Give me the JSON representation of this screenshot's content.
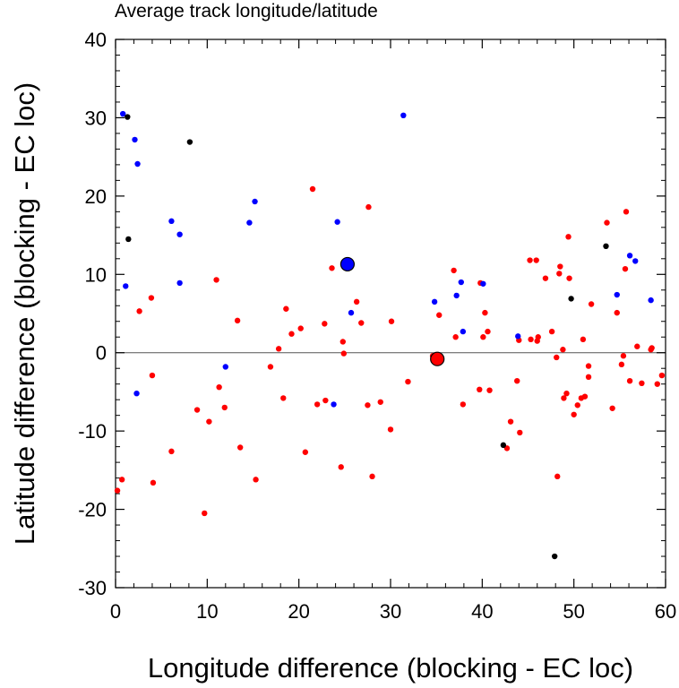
{
  "chart_data": {
    "type": "scatter",
    "title": "Average track longitude/latitude",
    "xlabel": "Longitude difference (blocking - EC loc)",
    "ylabel": "Latitude difference (blocking - EC loc)",
    "xlim": [
      0,
      60
    ],
    "ylim": [
      -30,
      40
    ],
    "xticks": [
      0,
      10,
      20,
      30,
      40,
      50,
      60
    ],
    "yticks": [
      -30,
      -20,
      -10,
      0,
      10,
      20,
      30,
      40
    ],
    "x_tick_labels": [
      "0",
      "10",
      "20",
      "30",
      "40",
      "50",
      "60"
    ],
    "y_tick_labels": [
      "-30",
      "-20",
      "-10",
      "0",
      "10",
      "20",
      "30",
      "40"
    ],
    "zero_line": true,
    "grid": false,
    "series": [
      {
        "color": "#ff0000",
        "marker": "small-dot",
        "points": [
          [
            0.2,
            -17.6
          ],
          [
            0.7,
            -16.2
          ],
          [
            2.6,
            5.3
          ],
          [
            3.9,
            7.0
          ],
          [
            4.0,
            -2.9
          ],
          [
            4.1,
            -16.6
          ],
          [
            6.1,
            -12.6
          ],
          [
            8.9,
            -7.3
          ],
          [
            9.7,
            -20.5
          ],
          [
            10.2,
            -8.8
          ],
          [
            11.0,
            9.3
          ],
          [
            11.3,
            -4.4
          ],
          [
            11.9,
            -7.0
          ],
          [
            13.3,
            4.1
          ],
          [
            13.6,
            -12.1
          ],
          [
            15.3,
            -16.2
          ],
          [
            16.9,
            -1.8
          ],
          [
            17.8,
            0.5
          ],
          [
            18.3,
            -5.8
          ],
          [
            18.6,
            5.6
          ],
          [
            19.2,
            2.4
          ],
          [
            20.2,
            3.1
          ],
          [
            20.7,
            -12.7
          ],
          [
            21.5,
            20.9
          ],
          [
            22.0,
            -6.6
          ],
          [
            22.8,
            3.7
          ],
          [
            22.9,
            -6.1
          ],
          [
            23.6,
            10.8
          ],
          [
            24.6,
            -14.6
          ],
          [
            24.8,
            1.4
          ],
          [
            24.9,
            -0.1
          ],
          [
            26.3,
            6.5
          ],
          [
            26.8,
            3.8
          ],
          [
            27.5,
            -6.7
          ],
          [
            27.6,
            18.6
          ],
          [
            28.0,
            -15.8
          ],
          [
            28.9,
            -6.3
          ],
          [
            30.1,
            4.0
          ],
          [
            30.0,
            -9.8
          ],
          [
            31.9,
            -3.7
          ],
          [
            34.6,
            -0.4
          ],
          [
            35.3,
            4.8
          ],
          [
            36.9,
            10.5
          ],
          [
            37.1,
            2.0
          ],
          [
            37.9,
            -6.6
          ],
          [
            39.7,
            -4.7
          ],
          [
            39.8,
            8.9
          ],
          [
            40.1,
            2.0
          ],
          [
            40.3,
            5.1
          ],
          [
            40.6,
            2.7
          ],
          [
            40.8,
            -4.8
          ],
          [
            42.7,
            -12.2
          ],
          [
            43.1,
            -8.8
          ],
          [
            43.8,
            -3.6
          ],
          [
            44.1,
            -10.2
          ],
          [
            45.2,
            11.8
          ],
          [
            45.3,
            1.7
          ],
          [
            45.9,
            11.8
          ],
          [
            46.1,
            2.0
          ],
          [
            46.0,
            1.5
          ],
          [
            46.9,
            9.5
          ],
          [
            47.6,
            2.7
          ],
          [
            48.1,
            -0.6
          ],
          [
            48.2,
            -15.8
          ],
          [
            48.5,
            11.0
          ],
          [
            48.4,
            10.1
          ],
          [
            48.8,
            0.4
          ],
          [
            48.9,
            -5.8
          ],
          [
            49.2,
            -5.2
          ],
          [
            49.4,
            14.8
          ],
          [
            49.5,
            9.5
          ],
          [
            50.0,
            -7.9
          ],
          [
            50.4,
            -6.7
          ],
          [
            50.8,
            -5.8
          ],
          [
            51.2,
            -5.6
          ],
          [
            51.6,
            -1.7
          ],
          [
            51.6,
            -3.1
          ],
          [
            51.9,
            6.2
          ],
          [
            53.6,
            16.6
          ],
          [
            54.2,
            -7.1
          ],
          [
            54.7,
            5.1
          ],
          [
            55.2,
            -1.5
          ],
          [
            55.4,
            -0.4
          ],
          [
            55.6,
            10.7
          ],
          [
            55.7,
            18.0
          ],
          [
            56.1,
            -3.6
          ],
          [
            56.9,
            0.8
          ],
          [
            57.4,
            -3.9
          ],
          [
            58.4,
            0.4
          ],
          [
            58.5,
            0.6
          ],
          [
            59.1,
            -4.0
          ],
          [
            59.6,
            -2.9
          ],
          [
            51.0,
            1.7
          ],
          [
            44.0,
            1.6
          ]
        ]
      },
      {
        "color": "#0000ff",
        "marker": "small-dot",
        "points": [
          [
            0.8,
            30.5
          ],
          [
            1.1,
            8.5
          ],
          [
            2.1,
            27.2
          ],
          [
            2.4,
            24.1
          ],
          [
            2.3,
            -5.2
          ],
          [
            6.1,
            16.8
          ],
          [
            7.0,
            15.1
          ],
          [
            7.0,
            8.9
          ],
          [
            12.0,
            -1.8
          ],
          [
            14.6,
            16.6
          ],
          [
            15.2,
            19.3
          ],
          [
            23.8,
            -6.6
          ],
          [
            24.2,
            16.7
          ],
          [
            25.7,
            5.1
          ],
          [
            31.4,
            30.3
          ],
          [
            34.8,
            6.5
          ],
          [
            37.2,
            7.3
          ],
          [
            37.7,
            9.0
          ],
          [
            37.9,
            2.7
          ],
          [
            40.1,
            8.8
          ],
          [
            43.9,
            2.1
          ],
          [
            54.7,
            7.4
          ],
          [
            56.1,
            12.4
          ],
          [
            56.7,
            11.7
          ],
          [
            58.4,
            6.7
          ]
        ]
      },
      {
        "color": "#000000",
        "marker": "small-dot",
        "points": [
          [
            1.3,
            30.1
          ],
          [
            8.1,
            26.9
          ],
          [
            1.4,
            14.5
          ],
          [
            42.3,
            -11.8
          ],
          [
            47.9,
            -26.0
          ],
          [
            49.7,
            6.9
          ],
          [
            53.5,
            13.6
          ]
        ]
      },
      {
        "color": "#0000ff",
        "marker": "large-dot-outlined",
        "points": [
          [
            25.3,
            11.3
          ]
        ]
      },
      {
        "color": "#ff0000",
        "marker": "large-dot-outlined",
        "points": [
          [
            35.1,
            -0.8
          ]
        ]
      }
    ]
  }
}
